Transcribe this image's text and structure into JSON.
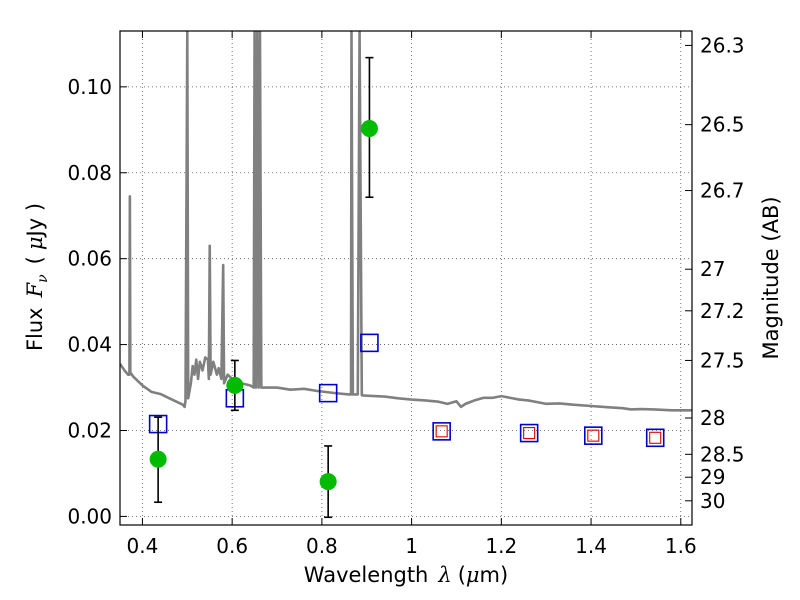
{
  "chart_data": {
    "type": "scatter",
    "xlabel_prefix": "Wavelength",
    "xlabel_symbol": "λ",
    "xlabel_unit_open": "(",
    "xlabel_unit_mu": "μ",
    "xlabel_unit_rest": "m)",
    "ylabel_prefix": "Flux",
    "ylabel_symbol": "F",
    "ylabel_subscript": "ν",
    "ylabel_unit_open": "(",
    "ylabel_unit_mu": "μ",
    "ylabel_unit_rest": "Jy )",
    "y2label": "Magnitude (AB)",
    "xlim": [
      0.35,
      1.625
    ],
    "ylim": [
      -0.002,
      0.113
    ],
    "grid": true,
    "x_ticks": [
      {
        "value": 0.4,
        "label": "0.4"
      },
      {
        "value": 0.6,
        "label": "0.6"
      },
      {
        "value": 0.8,
        "label": "0.8"
      },
      {
        "value": 1.0,
        "label": "1"
      },
      {
        "value": 1.2,
        "label": "1.2"
      },
      {
        "value": 1.4,
        "label": "1.4"
      },
      {
        "value": 1.6,
        "label": "1.6"
      }
    ],
    "y_ticks": [
      {
        "value": 0.0,
        "label": "0.00"
      },
      {
        "value": 0.02,
        "label": "0.02"
      },
      {
        "value": 0.04,
        "label": "0.04"
      },
      {
        "value": 0.06,
        "label": "0.06"
      },
      {
        "value": 0.08,
        "label": "0.08"
      },
      {
        "value": 0.1,
        "label": "0.10"
      }
    ],
    "y2_ticks": [
      {
        "value": 26.3,
        "label": "26.3"
      },
      {
        "value": 26.5,
        "label": "26.5"
      },
      {
        "value": 26.7,
        "label": "26.7"
      },
      {
        "value": 27.0,
        "label": "27"
      },
      {
        "value": 27.2,
        "label": "27.2"
      },
      {
        "value": 27.5,
        "label": "27.5"
      },
      {
        "value": 28.0,
        "label": "28"
      },
      {
        "value": 28.5,
        "label": "28.5"
      },
      {
        "value": 29.0,
        "label": "29"
      },
      {
        "value": 30.0,
        "label": "30"
      }
    ],
    "colors": {
      "spectrum": "#808080",
      "observed": "#00bb00",
      "model_box": "#0000cc",
      "model_inner": "#dd0000",
      "errorbar": "#000000",
      "grid": "#555555"
    },
    "observed": [
      {
        "x": 0.435,
        "y": 0.0133,
        "err_low": 0.01,
        "err_high": 0.0098
      },
      {
        "x": 0.606,
        "y": 0.0305,
        "err_low": 0.0058,
        "err_high": 0.0058
      },
      {
        "x": 0.814,
        "y": 0.0081,
        "err_low": 0.0083,
        "err_high": 0.0083
      },
      {
        "x": 0.906,
        "y": 0.0903,
        "err_low": 0.016,
        "err_high": 0.0165
      }
    ],
    "model_boxes": [
      {
        "x": 0.435,
        "y": 0.0215
      },
      {
        "x": 0.606,
        "y": 0.0275
      },
      {
        "x": 0.814,
        "y": 0.0287
      },
      {
        "x": 0.906,
        "y": 0.0404
      },
      {
        "x": 1.067,
        "y": 0.0198
      },
      {
        "x": 1.262,
        "y": 0.0194
      },
      {
        "x": 1.405,
        "y": 0.0188
      },
      {
        "x": 1.543,
        "y": 0.0183
      }
    ],
    "model_inner": [
      {
        "x": 1.067,
        "y": 0.0198
      },
      {
        "x": 1.262,
        "y": 0.0194
      },
      {
        "x": 1.405,
        "y": 0.0188
      },
      {
        "x": 1.543,
        "y": 0.0183
      }
    ],
    "spectrum": [
      [
        0.35,
        0.0355
      ],
      [
        0.36,
        0.034
      ],
      [
        0.368,
        0.033
      ],
      [
        0.371,
        0.033
      ],
      [
        0.372,
        0.0745
      ],
      [
        0.373,
        0.0335
      ],
      [
        0.38,
        0.0325
      ],
      [
        0.4,
        0.0305
      ],
      [
        0.42,
        0.029
      ],
      [
        0.44,
        0.0285
      ],
      [
        0.46,
        0.0275
      ],
      [
        0.48,
        0.0265
      ],
      [
        0.49,
        0.026
      ],
      [
        0.494,
        0.0255
      ],
      [
        0.496,
        0.027
      ],
      [
        0.5,
        0.113
      ],
      [
        0.502,
        0.0275
      ],
      [
        0.508,
        0.031
      ],
      [
        0.512,
        0.035
      ],
      [
        0.516,
        0.033
      ],
      [
        0.52,
        0.0365
      ],
      [
        0.524,
        0.032
      ],
      [
        0.528,
        0.036
      ],
      [
        0.534,
        0.034
      ],
      [
        0.54,
        0.037
      ],
      [
        0.546,
        0.0365
      ],
      [
        0.548,
        0.032
      ],
      [
        0.55,
        0.063
      ],
      [
        0.552,
        0.033
      ],
      [
        0.558,
        0.036
      ],
      [
        0.566,
        0.033
      ],
      [
        0.57,
        0.0345
      ],
      [
        0.576,
        0.032
      ],
      [
        0.58,
        0.0585
      ],
      [
        0.582,
        0.031
      ],
      [
        0.59,
        0.033
      ],
      [
        0.6,
        0.032
      ],
      [
        0.62,
        0.031
      ],
      [
        0.64,
        0.0305
      ],
      [
        0.648,
        0.03
      ],
      [
        0.65,
        0.113
      ],
      [
        0.653,
        0.03
      ],
      [
        0.656,
        0.113
      ],
      [
        0.659,
        0.03
      ],
      [
        0.662,
        0.113
      ],
      [
        0.665,
        0.03
      ],
      [
        0.67,
        0.03
      ],
      [
        0.7,
        0.03
      ],
      [
        0.73,
        0.0295
      ],
      [
        0.76,
        0.0297
      ],
      [
        0.79,
        0.0292
      ],
      [
        0.83,
        0.0287
      ],
      [
        0.86,
        0.0284
      ],
      [
        0.865,
        0.0284
      ],
      [
        0.866,
        0.113
      ],
      [
        0.869,
        0.0284
      ],
      [
        0.88,
        0.0284
      ],
      [
        0.884,
        0.113
      ],
      [
        0.889,
        0.0282
      ],
      [
        0.9,
        0.0281
      ],
      [
        0.94,
        0.0279
      ],
      [
        0.97,
        0.0275
      ],
      [
        1.0,
        0.0272
      ],
      [
        1.03,
        0.027
      ],
      [
        1.06,
        0.0267
      ],
      [
        1.08,
        0.0262
      ],
      [
        1.1,
        0.0268
      ],
      [
        1.11,
        0.0255
      ],
      [
        1.12,
        0.0262
      ],
      [
        1.14,
        0.027
      ],
      [
        1.16,
        0.0276
      ],
      [
        1.18,
        0.0276
      ],
      [
        1.2,
        0.028
      ],
      [
        1.22,
        0.0276
      ],
      [
        1.24,
        0.0272
      ],
      [
        1.26,
        0.027
      ],
      [
        1.28,
        0.0266
      ],
      [
        1.3,
        0.0262
      ],
      [
        1.33,
        0.0263
      ],
      [
        1.36,
        0.026
      ],
      [
        1.4,
        0.0257
      ],
      [
        1.44,
        0.0254
      ],
      [
        1.47,
        0.0252
      ],
      [
        1.49,
        0.0249
      ],
      [
        1.51,
        0.025
      ],
      [
        1.54,
        0.0249
      ],
      [
        1.58,
        0.0247
      ],
      [
        1.625,
        0.0247
      ]
    ]
  }
}
